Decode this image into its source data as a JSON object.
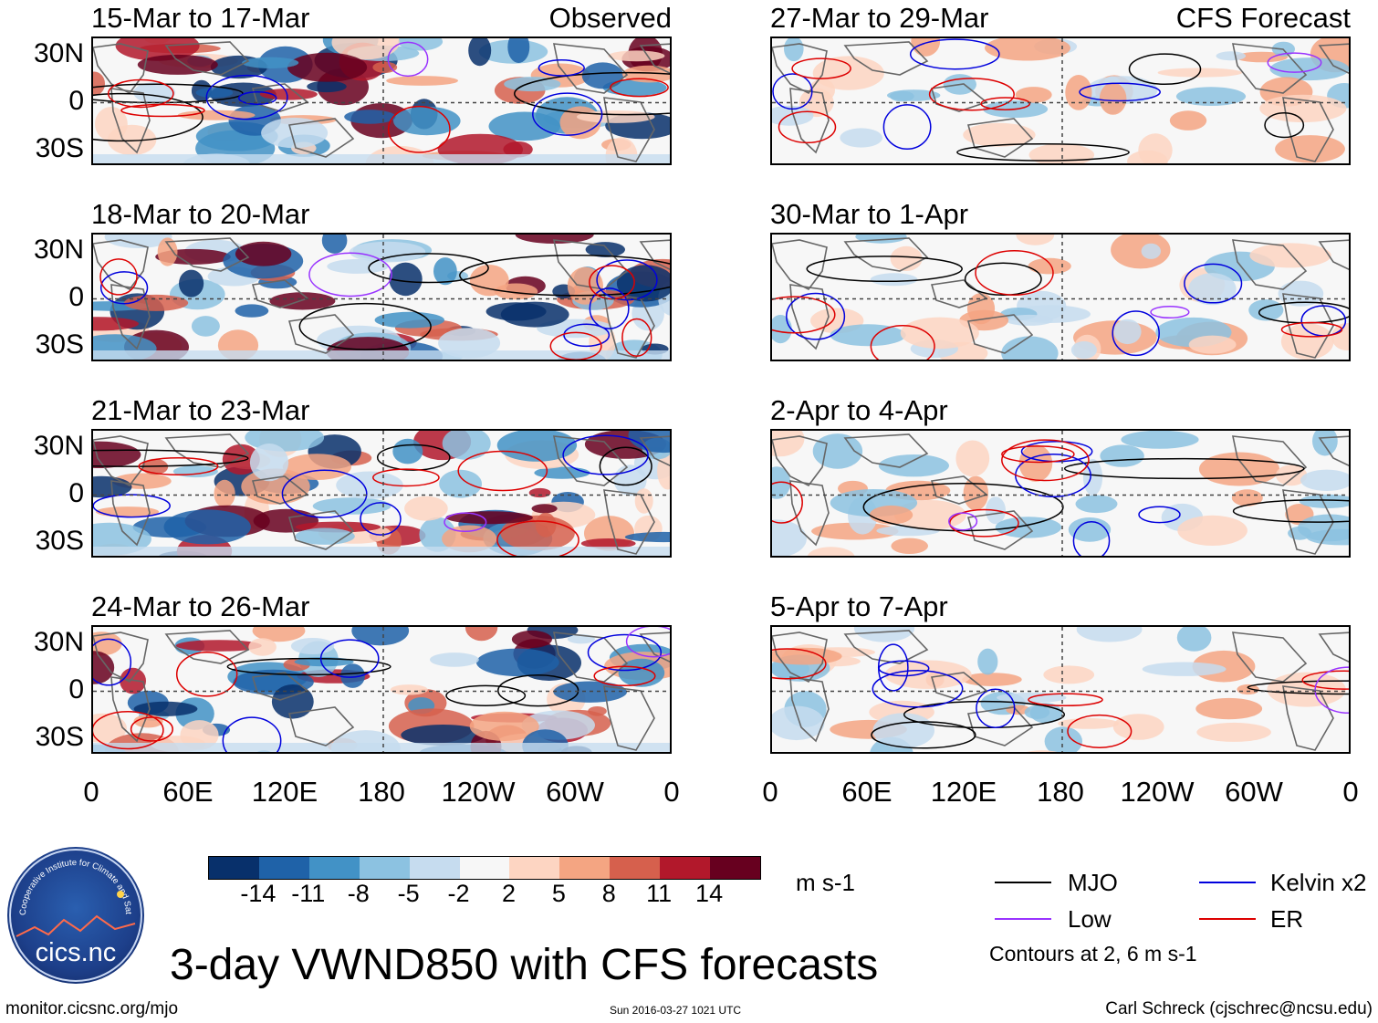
{
  "panels": [
    {
      "date": "15-Mar to 17-Mar",
      "source": "Observed",
      "kind": "observed"
    },
    {
      "date": "18-Mar to 20-Mar",
      "source": "",
      "kind": "observed"
    },
    {
      "date": "21-Mar to 23-Mar",
      "source": "",
      "kind": "observed"
    },
    {
      "date": "24-Mar to 26-Mar",
      "source": "",
      "kind": "observed"
    },
    {
      "date": "27-Mar to 29-Mar",
      "source": "CFS Forecast",
      "kind": "forecast"
    },
    {
      "date": "30-Mar to 1-Apr",
      "source": "",
      "kind": "forecast"
    },
    {
      "date": "2-Apr to 4-Apr",
      "source": "",
      "kind": "forecast"
    },
    {
      "date": "5-Apr to 7-Apr",
      "source": "",
      "kind": "forecast"
    }
  ],
  "latitude_labels": [
    "30N",
    "0",
    "30S"
  ],
  "longitude_labels": [
    "0",
    "60E",
    "120E",
    "180",
    "120W",
    "60W",
    "0"
  ],
  "colorbar": {
    "colors": [
      "#08306b",
      "#1f62a8",
      "#4292c6",
      "#8cc2e1",
      "#c6dcef",
      "#f7f7f7",
      "#fdd5c2",
      "#f4a582",
      "#d6604d",
      "#b2182b",
      "#67001f"
    ],
    "labels": [
      "-14",
      "-11",
      "-8",
      "-5",
      "-2",
      "2",
      "5",
      "8",
      "11",
      "14"
    ],
    "unit": "m s-1"
  },
  "legend": {
    "items": [
      {
        "label": "MJO",
        "color": "#000000"
      },
      {
        "label": "Kelvin x2",
        "color": "#0000dd"
      },
      {
        "label": "Low",
        "color": "#9933ff"
      },
      {
        "label": "ER",
        "color": "#dd0000"
      }
    ],
    "note": "Contours at 2, 6 m s-1"
  },
  "title": "3-day VWND850 with CFS forecasts",
  "logo_text": "cics.nc",
  "logo_ring_text": "Cooperative Institute for Climate and Satellites",
  "footer": {
    "url": "monitor.cicsnc.org/mjo",
    "timestamp": "Sun 2016-03-27 1021 UTC",
    "author": "Carl Schreck (cjschrec@ncsu.edu)"
  }
}
